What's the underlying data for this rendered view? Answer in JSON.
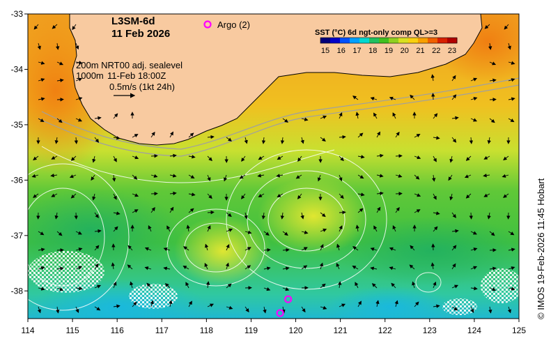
{
  "header": {
    "product": "L3SM-6d",
    "date": "11 Feb 2026"
  },
  "argo": {
    "label": "Argo (2)",
    "color": "#ff00ff",
    "floats": [
      {
        "lon": 119.83,
        "lat": -38.15
      },
      {
        "lon": 119.65,
        "lat": -38.4
      }
    ]
  },
  "colorbar": {
    "title": "SST (°C) 6d ngt-only comp QL>=3",
    "ticks": [
      "15",
      "16",
      "17",
      "18",
      "19",
      "20",
      "21",
      "22",
      "23"
    ],
    "colors": [
      "#00007a",
      "#0000c8",
      "#0050ff",
      "#00a0ff",
      "#00d8d0",
      "#20c060",
      "#40c020",
      "#90d020",
      "#d8e020",
      "#f8d010",
      "#f8a000",
      "#f06000",
      "#d82000",
      "#b00000"
    ]
  },
  "legend": {
    "line1": "200m  NRT00 adj. sealevel",
    "line2a": "1000m",
    "line2b": "11-Feb 18:00Z",
    "scale": "0.5m/s (1kt 24h)"
  },
  "credit": "© IMOS 19-Feb-2026 11:45 Hobart",
  "axes": {
    "x_ticks": [
      "114",
      "115",
      "116",
      "117",
      "118",
      "119",
      "120",
      "121",
      "122",
      "123",
      "124",
      "125"
    ],
    "y_ticks": [
      "-33",
      "-34",
      "-35",
      "-36",
      "-37",
      "-38"
    ]
  },
  "colors": {
    "land": "#f8caa0",
    "coast": "#000000",
    "contour": "#ffffff",
    "isobath": "#a0a0a0"
  }
}
